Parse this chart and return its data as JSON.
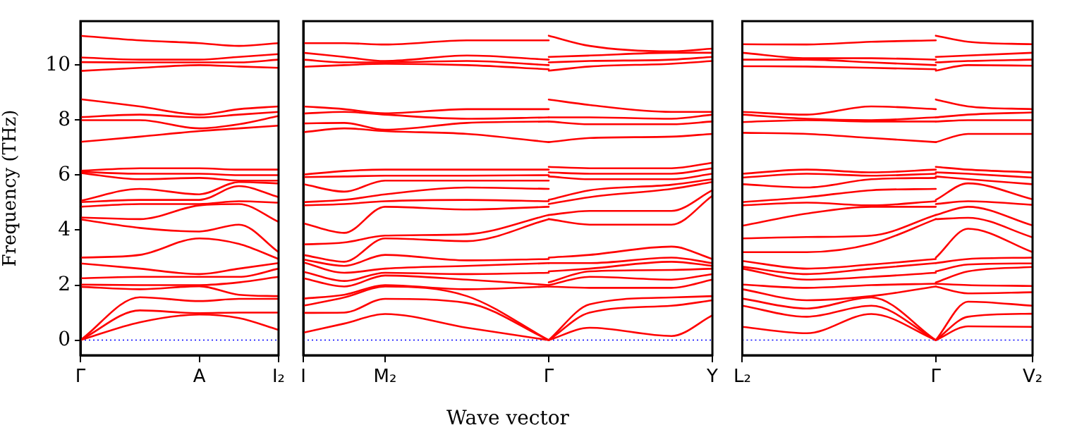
{
  "chart_data": [
    {
      "type": "line",
      "ylabel": "Frequency (THz)",
      "categories": [
        "Γ",
        null,
        null,
        null,
        null,
        null,
        "A",
        null,
        null,
        null,
        "I₂"
      ],
      "ylim": [
        -0.55,
        11.6
      ],
      "yticks": [
        0,
        2,
        4,
        6,
        8,
        10
      ],
      "ref_lines": [
        {
          "axis": "y",
          "value": 0,
          "color": "#0000ff",
          "line_style": "dotted"
        }
      ],
      "series": [
        {
          "color": "#ff0000",
          "values": [
            0,
            null,
            null,
            0.65,
            null,
            null,
            0.93,
            null,
            0.8,
            null,
            0.37
          ]
        },
        {
          "color": "#ff0000",
          "values": [
            0,
            null,
            null,
            1.08,
            null,
            null,
            0.98,
            null,
            1.0,
            null,
            1.0
          ]
        },
        {
          "color": "#ff0000",
          "values": [
            0,
            null,
            null,
            1.56,
            null,
            null,
            1.42,
            null,
            1.5,
            null,
            1.5
          ]
        },
        {
          "color": "#ff0000",
          "values": [
            1.94,
            null,
            null,
            1.85,
            null,
            null,
            1.96,
            null,
            1.65,
            null,
            1.6
          ]
        },
        {
          "color": "#ff0000",
          "values": [
            2.02,
            null,
            null,
            2.0,
            null,
            null,
            2.0,
            null,
            2.1,
            null,
            2.3
          ]
        },
        {
          "color": "#ff0000",
          "values": [
            2.25,
            null,
            null,
            2.3,
            null,
            null,
            2.3,
            null,
            2.3,
            null,
            2.6
          ]
        },
        {
          "color": "#ff0000",
          "values": [
            2.79,
            null,
            null,
            2.6,
            null,
            null,
            2.4,
            null,
            2.6,
            null,
            2.8
          ]
        },
        {
          "color": "#ff0000",
          "values": [
            3.0,
            null,
            null,
            3.1,
            null,
            null,
            3.7,
            null,
            3.5,
            null,
            2.95
          ]
        },
        {
          "color": "#ff0000",
          "values": [
            4.39,
            null,
            null,
            4.08,
            null,
            null,
            3.95,
            null,
            4.2,
            null,
            3.2
          ]
        },
        {
          "color": "#ff0000",
          "values": [
            4.46,
            null,
            null,
            4.4,
            null,
            null,
            4.9,
            null,
            4.95,
            null,
            4.3
          ]
        },
        {
          "color": "#ff0000",
          "values": [
            4.85,
            null,
            null,
            4.95,
            null,
            null,
            4.95,
            null,
            5.05,
            null,
            5.0
          ]
        },
        {
          "color": "#ff0000",
          "values": [
            5.02,
            null,
            null,
            5.1,
            null,
            null,
            5.1,
            null,
            5.6,
            null,
            5.2
          ]
        },
        {
          "color": "#ff0000",
          "values": [
            5.07,
            null,
            null,
            5.5,
            null,
            null,
            5.3,
            null,
            5.75,
            null,
            5.7
          ]
        },
        {
          "color": "#ff0000",
          "values": [
            6.08,
            null,
            null,
            5.85,
            null,
            null,
            5.9,
            null,
            5.8,
            null,
            5.8
          ]
        },
        {
          "color": "#ff0000",
          "values": [
            6.12,
            null,
            null,
            6.05,
            null,
            null,
            6.05,
            null,
            6.0,
            null,
            6.0
          ]
        },
        {
          "color": "#ff0000",
          "values": [
            6.16,
            null,
            null,
            6.25,
            null,
            null,
            6.25,
            null,
            6.2,
            null,
            6.2
          ]
        },
        {
          "color": "#ff0000",
          "values": [
            7.21,
            null,
            null,
            7.4,
            null,
            null,
            7.6,
            null,
            7.7,
            null,
            7.8
          ]
        },
        {
          "color": "#ff0000",
          "values": [
            8.0,
            null,
            null,
            8.0,
            null,
            null,
            7.7,
            null,
            7.85,
            null,
            8.15
          ]
        },
        {
          "color": "#ff0000",
          "values": [
            8.11,
            null,
            null,
            8.2,
            null,
            null,
            8.1,
            null,
            8.2,
            null,
            8.3
          ]
        },
        {
          "color": "#ff0000",
          "values": [
            8.76,
            null,
            null,
            8.5,
            null,
            null,
            8.2,
            null,
            8.4,
            null,
            8.5
          ]
        },
        {
          "color": "#ff0000",
          "values": [
            9.79,
            null,
            null,
            9.9,
            null,
            null,
            10.0,
            null,
            9.95,
            null,
            9.9
          ]
        },
        {
          "color": "#ff0000",
          "values": [
            10.11,
            null,
            null,
            10.1,
            null,
            null,
            10.1,
            null,
            10.1,
            null,
            10.2
          ]
        },
        {
          "color": "#ff0000",
          "values": [
            10.28,
            null,
            null,
            10.2,
            null,
            null,
            10.2,
            null,
            10.3,
            null,
            10.4
          ]
        },
        {
          "color": "#ff0000",
          "values": [
            11.07,
            null,
            null,
            10.9,
            null,
            null,
            10.8,
            null,
            10.7,
            null,
            10.8
          ]
        }
      ]
    },
    {
      "type": "line",
      "xlabel": "Wave vector",
      "tick_labels": "x",
      "categories": [
        "I",
        null,
        "M₂",
        null,
        null,
        null,
        "Γ",
        null,
        null,
        null,
        "Y"
      ],
      "ylim": [
        -0.55,
        11.6
      ],
      "yticks": [
        0,
        2,
        4,
        6,
        8,
        10
      ],
      "ref_lines": [
        {
          "axis": "y",
          "value": 0,
          "color": "#0000ff",
          "line_style": "dotted"
        }
      ],
      "series": [
        {
          "color": "#ff0000",
          "values": [
            0.27,
            0.6,
            0.95,
            null,
            0.45,
            null,
            0,
            null,
            null,
            null,
            null
          ]
        },
        {
          "color": "#ff0000",
          "values": [
            0.99,
            1.0,
            1.5,
            null,
            1.35,
            null,
            0,
            null,
            null,
            null,
            null
          ]
        },
        {
          "color": "#ff0000",
          "values": [
            1.25,
            1.55,
            1.95,
            null,
            1.6,
            null,
            0,
            null,
            null,
            null,
            null
          ]
        },
        {
          "color": "#ff0000",
          "values": [
            1.51,
            1.65,
            2.0,
            null,
            1.85,
            null,
            1.95,
            null,
            null,
            null,
            null
          ]
        },
        {
          "color": "#ff0000",
          "values": [
            2.25,
            1.95,
            2.35,
            null,
            2.2,
            null,
            2.0,
            null,
            null,
            null,
            null
          ]
        },
        {
          "color": "#ff0000",
          "values": [
            2.49,
            2.15,
            2.45,
            null,
            2.4,
            null,
            2.45,
            null,
            null,
            null,
            null
          ]
        },
        {
          "color": "#ff0000",
          "values": [
            2.83,
            2.45,
            2.6,
            null,
            2.7,
            null,
            2.8,
            null,
            null,
            null,
            null
          ]
        },
        {
          "color": "#ff0000",
          "values": [
            2.93,
            2.7,
            3.1,
            null,
            2.9,
            null,
            2.95,
            null,
            null,
            null,
            null
          ]
        },
        {
          "color": "#ff0000",
          "values": [
            3.1,
            2.85,
            3.7,
            null,
            3.6,
            null,
            4.4,
            null,
            null,
            null,
            null
          ]
        },
        {
          "color": "#ff0000",
          "values": [
            3.48,
            3.55,
            3.8,
            null,
            3.85,
            null,
            4.55,
            null,
            null,
            null,
            null
          ]
        },
        {
          "color": "#ff0000",
          "values": [
            4.25,
            3.9,
            4.85,
            null,
            4.75,
            null,
            4.85,
            null,
            null,
            null,
            null
          ]
        },
        {
          "color": "#ff0000",
          "values": [
            4.9,
            4.95,
            5.05,
            null,
            5.1,
            null,
            5.05,
            null,
            null,
            null,
            null
          ]
        },
        {
          "color": "#ff0000",
          "values": [
            5.02,
            5.1,
            5.3,
            null,
            5.55,
            null,
            5.5,
            null,
            null,
            null,
            null
          ]
        },
        {
          "color": "#ff0000",
          "values": [
            5.67,
            5.4,
            5.8,
            null,
            5.8,
            null,
            5.8,
            null,
            null,
            null,
            null
          ]
        },
        {
          "color": "#ff0000",
          "values": [
            5.93,
            5.95,
            5.98,
            null,
            5.98,
            null,
            6.0,
            null,
            null,
            null,
            null
          ]
        },
        {
          "color": "#ff0000",
          "values": [
            6.02,
            6.15,
            6.2,
            null,
            6.2,
            null,
            6.2,
            null,
            null,
            null,
            null
          ]
        },
        {
          "color": "#ff0000",
          "values": [
            7.56,
            7.7,
            7.6,
            null,
            7.5,
            null,
            7.2,
            null,
            null,
            null,
            null
          ]
        },
        {
          "color": "#ff0000",
          "values": [
            7.88,
            7.9,
            7.65,
            null,
            7.9,
            null,
            7.95,
            null,
            null,
            null,
            null
          ]
        },
        {
          "color": "#ff0000",
          "values": [
            8.24,
            8.3,
            8.2,
            null,
            8.05,
            null,
            8.1,
            null,
            null,
            null,
            null
          ]
        },
        {
          "color": "#ff0000",
          "values": [
            8.5,
            8.4,
            8.25,
            null,
            8.4,
            null,
            8.4,
            null,
            null,
            null,
            null
          ]
        },
        {
          "color": "#ff0000",
          "values": [
            9.94,
            10.0,
            10.05,
            null,
            10.0,
            null,
            9.85,
            null,
            null,
            null,
            null
          ]
        },
        {
          "color": "#ff0000",
          "values": [
            10.2,
            10.1,
            10.1,
            null,
            10.15,
            null,
            10.0,
            null,
            null,
            null,
            null
          ]
        },
        {
          "color": "#ff0000",
          "values": [
            10.45,
            10.3,
            10.15,
            null,
            10.35,
            null,
            10.2,
            null,
            null,
            null,
            null
          ]
        },
        {
          "color": "#ff0000",
          "values": [
            10.8,
            10.8,
            10.75,
            null,
            10.9,
            null,
            10.9,
            null,
            null,
            null,
            null
          ]
        },
        {
          "color": "#ff0000",
          "values": [
            null,
            null,
            null,
            null,
            null,
            null,
            0,
            0.45,
            null,
            0.15,
            0.9
          ]
        },
        {
          "color": "#ff0000",
          "values": [
            null,
            null,
            null,
            null,
            null,
            null,
            0,
            1.0,
            null,
            1.25,
            1.45
          ]
        },
        {
          "color": "#ff0000",
          "values": [
            null,
            null,
            null,
            null,
            null,
            null,
            0,
            1.3,
            null,
            1.55,
            1.6
          ]
        },
        {
          "color": "#ff0000",
          "values": [
            null,
            null,
            null,
            null,
            null,
            null,
            1.95,
            1.9,
            null,
            1.9,
            2.2
          ]
        },
        {
          "color": "#ff0000",
          "values": [
            null,
            null,
            null,
            null,
            null,
            null,
            2.0,
            2.3,
            null,
            2.2,
            2.4
          ]
        },
        {
          "color": "#ff0000",
          "values": [
            null,
            null,
            null,
            null,
            null,
            null,
            2.1,
            2.5,
            null,
            2.55,
            2.6
          ]
        },
        {
          "color": "#ff0000",
          "values": [
            null,
            null,
            null,
            null,
            null,
            null,
            2.5,
            2.6,
            null,
            2.85,
            2.7
          ]
        },
        {
          "color": "#ff0000",
          "values": [
            null,
            null,
            null,
            null,
            null,
            null,
            2.8,
            2.8,
            null,
            3.0,
            2.8
          ]
        },
        {
          "color": "#ff0000",
          "values": [
            null,
            null,
            null,
            null,
            null,
            null,
            3.0,
            3.1,
            null,
            3.4,
            2.95
          ]
        },
        {
          "color": "#ff0000",
          "values": [
            null,
            null,
            null,
            null,
            null,
            null,
            4.4,
            4.2,
            null,
            4.2,
            5.25
          ]
        },
        {
          "color": "#ff0000",
          "values": [
            null,
            null,
            null,
            null,
            null,
            null,
            4.55,
            4.7,
            null,
            4.7,
            5.45
          ]
        },
        {
          "color": "#ff0000",
          "values": [
            null,
            null,
            null,
            null,
            null,
            null,
            4.95,
            5.2,
            null,
            5.5,
            5.75
          ]
        },
        {
          "color": "#ff0000",
          "values": [
            null,
            null,
            null,
            null,
            null,
            null,
            5.1,
            5.45,
            null,
            5.65,
            5.85
          ]
        },
        {
          "color": "#ff0000",
          "values": [
            null,
            null,
            null,
            null,
            null,
            null,
            5.95,
            5.85,
            null,
            5.85,
            6.05
          ]
        },
        {
          "color": "#ff0000",
          "values": [
            null,
            null,
            null,
            null,
            null,
            null,
            6.1,
            6.05,
            null,
            6.05,
            6.25
          ]
        },
        {
          "color": "#ff0000",
          "values": [
            null,
            null,
            null,
            null,
            null,
            null,
            6.3,
            6.25,
            null,
            6.25,
            6.45
          ]
        },
        {
          "color": "#ff0000",
          "values": [
            null,
            null,
            null,
            null,
            null,
            null,
            7.2,
            7.35,
            null,
            7.4,
            7.5
          ]
        },
        {
          "color": "#ff0000",
          "values": [
            null,
            null,
            null,
            null,
            null,
            null,
            7.95,
            7.85,
            null,
            7.85,
            7.95
          ]
        },
        {
          "color": "#ff0000",
          "values": [
            null,
            null,
            null,
            null,
            null,
            null,
            8.1,
            8.1,
            null,
            8.05,
            8.2
          ]
        },
        {
          "color": "#ff0000",
          "values": [
            null,
            null,
            null,
            null,
            null,
            null,
            8.75,
            8.55,
            null,
            8.3,
            8.3
          ]
        },
        {
          "color": "#ff0000",
          "values": [
            null,
            null,
            null,
            null,
            null,
            null,
            9.8,
            9.95,
            null,
            10.05,
            10.15
          ]
        },
        {
          "color": "#ff0000",
          "values": [
            null,
            null,
            null,
            null,
            null,
            null,
            10.1,
            10.15,
            null,
            10.2,
            10.3
          ]
        },
        {
          "color": "#ff0000",
          "values": [
            null,
            null,
            null,
            null,
            null,
            null,
            10.3,
            10.35,
            null,
            10.45,
            10.45
          ]
        },
        {
          "color": "#ff0000",
          "values": [
            null,
            null,
            null,
            null,
            null,
            null,
            11.07,
            10.7,
            null,
            10.5,
            10.6
          ]
        }
      ]
    },
    {
      "type": "line",
      "tick_labels": "x",
      "categories": [
        "L₂",
        null,
        null,
        null,
        null,
        null,
        "Γ",
        null,
        null,
        "V₂"
      ],
      "ylim": [
        -0.55,
        11.6
      ],
      "yticks": [
        0,
        2,
        4,
        6,
        8,
        10
      ],
      "ref_lines": [
        {
          "axis": "y",
          "value": 0,
          "color": "#0000ff",
          "line_style": "dotted"
        }
      ],
      "series": [
        {
          "color": "#ff0000",
          "values": [
            0.48,
            null,
            0.25,
            null,
            0.95,
            null,
            0,
            null,
            null,
            null
          ]
        },
        {
          "color": "#ff0000",
          "values": [
            1.25,
            null,
            0.85,
            null,
            1.25,
            null,
            0,
            null,
            null,
            null
          ]
        },
        {
          "color": "#ff0000",
          "values": [
            1.51,
            null,
            1.15,
            null,
            1.55,
            null,
            0,
            null,
            null,
            null
          ]
        },
        {
          "color": "#ff0000",
          "values": [
            1.85,
            null,
            1.45,
            null,
            1.6,
            null,
            1.95,
            null,
            null,
            null
          ]
        },
        {
          "color": "#ff0000",
          "values": [
            2.02,
            null,
            1.9,
            null,
            2.0,
            null,
            2.05,
            null,
            null,
            null
          ]
        },
        {
          "color": "#ff0000",
          "values": [
            2.6,
            null,
            2.2,
            null,
            2.3,
            null,
            2.45,
            null,
            null,
            null
          ]
        },
        {
          "color": "#ff0000",
          "values": [
            2.67,
            null,
            2.4,
            null,
            2.6,
            null,
            2.8,
            null,
            null,
            null
          ]
        },
        {
          "color": "#ff0000",
          "values": [
            2.88,
            null,
            2.6,
            null,
            2.75,
            null,
            2.95,
            null,
            null,
            null
          ]
        },
        {
          "color": "#ff0000",
          "values": [
            3.2,
            null,
            3.2,
            null,
            3.5,
            null,
            4.4,
            null,
            null,
            null
          ]
        },
        {
          "color": "#ff0000",
          "values": [
            3.7,
            null,
            3.75,
            null,
            3.8,
            null,
            4.55,
            null,
            null,
            null
          ]
        },
        {
          "color": "#ff0000",
          "values": [
            4.16,
            null,
            4.6,
            null,
            4.85,
            null,
            4.85,
            null,
            null,
            null
          ]
        },
        {
          "color": "#ff0000",
          "values": [
            4.9,
            null,
            5.0,
            null,
            4.9,
            null,
            5.05,
            null,
            null,
            null
          ]
        },
        {
          "color": "#ff0000",
          "values": [
            5.02,
            null,
            5.2,
            null,
            5.45,
            null,
            5.5,
            null,
            null,
            null
          ]
        },
        {
          "color": "#ff0000",
          "values": [
            5.67,
            null,
            5.55,
            null,
            5.85,
            null,
            5.9,
            null,
            null,
            null
          ]
        },
        {
          "color": "#ff0000",
          "values": [
            5.91,
            null,
            6.05,
            null,
            5.98,
            null,
            6.05,
            null,
            null,
            null
          ]
        },
        {
          "color": "#ff0000",
          "values": [
            6.05,
            null,
            6.2,
            null,
            6.1,
            null,
            6.2,
            null,
            null,
            null
          ]
        },
        {
          "color": "#ff0000",
          "values": [
            7.54,
            null,
            7.5,
            null,
            7.35,
            null,
            7.2,
            null,
            null,
            null
          ]
        },
        {
          "color": "#ff0000",
          "values": [
            7.93,
            null,
            8.0,
            null,
            7.95,
            null,
            7.95,
            null,
            null,
            null
          ]
        },
        {
          "color": "#ff0000",
          "values": [
            8.2,
            null,
            8.05,
            null,
            8.0,
            null,
            8.1,
            null,
            null,
            null
          ]
        },
        {
          "color": "#ff0000",
          "values": [
            8.3,
            null,
            8.2,
            null,
            8.5,
            null,
            8.4,
            null,
            null,
            null
          ]
        },
        {
          "color": "#ff0000",
          "values": [
            9.96,
            null,
            9.95,
            null,
            9.9,
            null,
            9.85,
            null,
            null,
            null
          ]
        },
        {
          "color": "#ff0000",
          "values": [
            10.2,
            null,
            10.2,
            null,
            10.1,
            null,
            10.0,
            null,
            null,
            null
          ]
        },
        {
          "color": "#ff0000",
          "values": [
            10.45,
            null,
            10.25,
            null,
            10.25,
            null,
            10.2,
            null,
            null,
            null
          ]
        },
        {
          "color": "#ff0000",
          "values": [
            10.76,
            null,
            10.75,
            null,
            10.85,
            null,
            10.9,
            null,
            null,
            null
          ]
        },
        {
          "color": "#ff0000",
          "values": [
            null,
            null,
            null,
            null,
            null,
            null,
            0,
            0.5,
            null,
            0.48
          ]
        },
        {
          "color": "#ff0000",
          "values": [
            null,
            null,
            null,
            null,
            null,
            null,
            0,
            0.85,
            null,
            0.96
          ]
        },
        {
          "color": "#ff0000",
          "values": [
            null,
            null,
            null,
            null,
            null,
            null,
            0,
            1.4,
            null,
            1.25
          ]
        },
        {
          "color": "#ff0000",
          "values": [
            null,
            null,
            null,
            null,
            null,
            null,
            1.95,
            1.7,
            null,
            1.74
          ]
        },
        {
          "color": "#ff0000",
          "values": [
            null,
            null,
            null,
            null,
            null,
            null,
            2.05,
            2.0,
            null,
            1.97
          ]
        },
        {
          "color": "#ff0000",
          "values": [
            null,
            null,
            null,
            null,
            null,
            null,
            2.1,
            2.5,
            null,
            2.66
          ]
        },
        {
          "color": "#ff0000",
          "values": [
            null,
            null,
            null,
            null,
            null,
            null,
            2.5,
            2.75,
            null,
            2.79
          ]
        },
        {
          "color": "#ff0000",
          "values": [
            null,
            null,
            null,
            null,
            null,
            null,
            2.8,
            2.95,
            null,
            3.0
          ]
        },
        {
          "color": "#ff0000",
          "values": [
            null,
            null,
            null,
            null,
            null,
            null,
            3.0,
            4.05,
            null,
            3.2
          ]
        },
        {
          "color": "#ff0000",
          "values": [
            null,
            null,
            null,
            null,
            null,
            null,
            4.4,
            4.45,
            null,
            3.74
          ]
        },
        {
          "color": "#ff0000",
          "values": [
            null,
            null,
            null,
            null,
            null,
            null,
            4.55,
            4.85,
            null,
            4.17
          ]
        },
        {
          "color": "#ff0000",
          "values": [
            null,
            null,
            null,
            null,
            null,
            null,
            4.95,
            5.05,
            null,
            4.92
          ]
        },
        {
          "color": "#ff0000",
          "values": [
            null,
            null,
            null,
            null,
            null,
            null,
            5.1,
            5.7,
            null,
            5.12
          ]
        },
        {
          "color": "#ff0000",
          "values": [
            null,
            null,
            null,
            null,
            null,
            null,
            5.95,
            5.85,
            null,
            5.67
          ]
        },
        {
          "color": "#ff0000",
          "values": [
            null,
            null,
            null,
            null,
            null,
            null,
            6.1,
            6.05,
            null,
            5.91
          ]
        },
        {
          "color": "#ff0000",
          "values": [
            null,
            null,
            null,
            null,
            null,
            null,
            6.3,
            6.2,
            null,
            6.1
          ]
        },
        {
          "color": "#ff0000",
          "values": [
            null,
            null,
            null,
            null,
            null,
            null,
            7.2,
            7.5,
            null,
            7.5
          ]
        },
        {
          "color": "#ff0000",
          "values": [
            null,
            null,
            null,
            null,
            null,
            null,
            7.95,
            8.0,
            null,
            8.0
          ]
        },
        {
          "color": "#ff0000",
          "values": [
            null,
            null,
            null,
            null,
            null,
            null,
            8.1,
            8.2,
            null,
            8.28
          ]
        },
        {
          "color": "#ff0000",
          "values": [
            null,
            null,
            null,
            null,
            null,
            null,
            8.75,
            8.5,
            null,
            8.4
          ]
        },
        {
          "color": "#ff0000",
          "values": [
            null,
            null,
            null,
            null,
            null,
            null,
            9.8,
            10.0,
            null,
            9.98
          ]
        },
        {
          "color": "#ff0000",
          "values": [
            null,
            null,
            null,
            null,
            null,
            null,
            10.1,
            10.15,
            null,
            10.2
          ]
        },
        {
          "color": "#ff0000",
          "values": [
            null,
            null,
            null,
            null,
            null,
            null,
            10.3,
            10.35,
            null,
            10.45
          ]
        },
        {
          "color": "#ff0000",
          "values": [
            null,
            null,
            null,
            null,
            null,
            null,
            11.07,
            10.85,
            null,
            10.76
          ]
        }
      ]
    }
  ]
}
